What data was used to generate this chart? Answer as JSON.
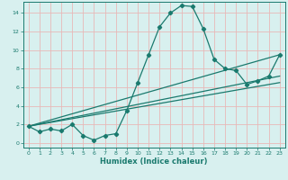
{
  "title": "",
  "xlabel": "Humidex (Indice chaleur)",
  "ylabel": "",
  "bg_color": "#d8f0ef",
  "grid_color": "#e8b8b8",
  "line_color": "#1a7a6e",
  "xlim": [
    -0.5,
    23.5
  ],
  "ylim": [
    -0.5,
    15.2
  ],
  "xticks": [
    0,
    1,
    2,
    3,
    4,
    5,
    6,
    7,
    8,
    9,
    10,
    11,
    12,
    13,
    14,
    15,
    16,
    17,
    18,
    19,
    20,
    21,
    22,
    23
  ],
  "yticks": [
    0,
    2,
    4,
    6,
    8,
    10,
    12,
    14
  ],
  "main_curve_x": [
    0,
    1,
    2,
    3,
    4,
    5,
    6,
    7,
    8,
    9,
    10,
    11,
    12,
    13,
    14,
    15,
    16,
    17,
    18,
    19,
    20,
    21,
    22,
    23
  ],
  "main_curve_y": [
    1.8,
    1.2,
    1.5,
    1.3,
    2.0,
    0.8,
    0.3,
    0.8,
    1.0,
    3.5,
    6.5,
    9.5,
    12.5,
    14.0,
    14.8,
    14.7,
    12.3,
    9.0,
    8.0,
    7.8,
    6.3,
    6.7,
    7.2,
    9.5
  ],
  "line1_x": [
    0,
    23
  ],
  "line1_y": [
    1.8,
    6.5
  ],
  "line2_x": [
    0,
    23
  ],
  "line2_y": [
    1.8,
    7.2
  ],
  "line3_x": [
    0,
    23
  ],
  "line3_y": [
    1.8,
    9.5
  ],
  "marker": "D",
  "markersize": 2.2,
  "linewidth": 0.9
}
